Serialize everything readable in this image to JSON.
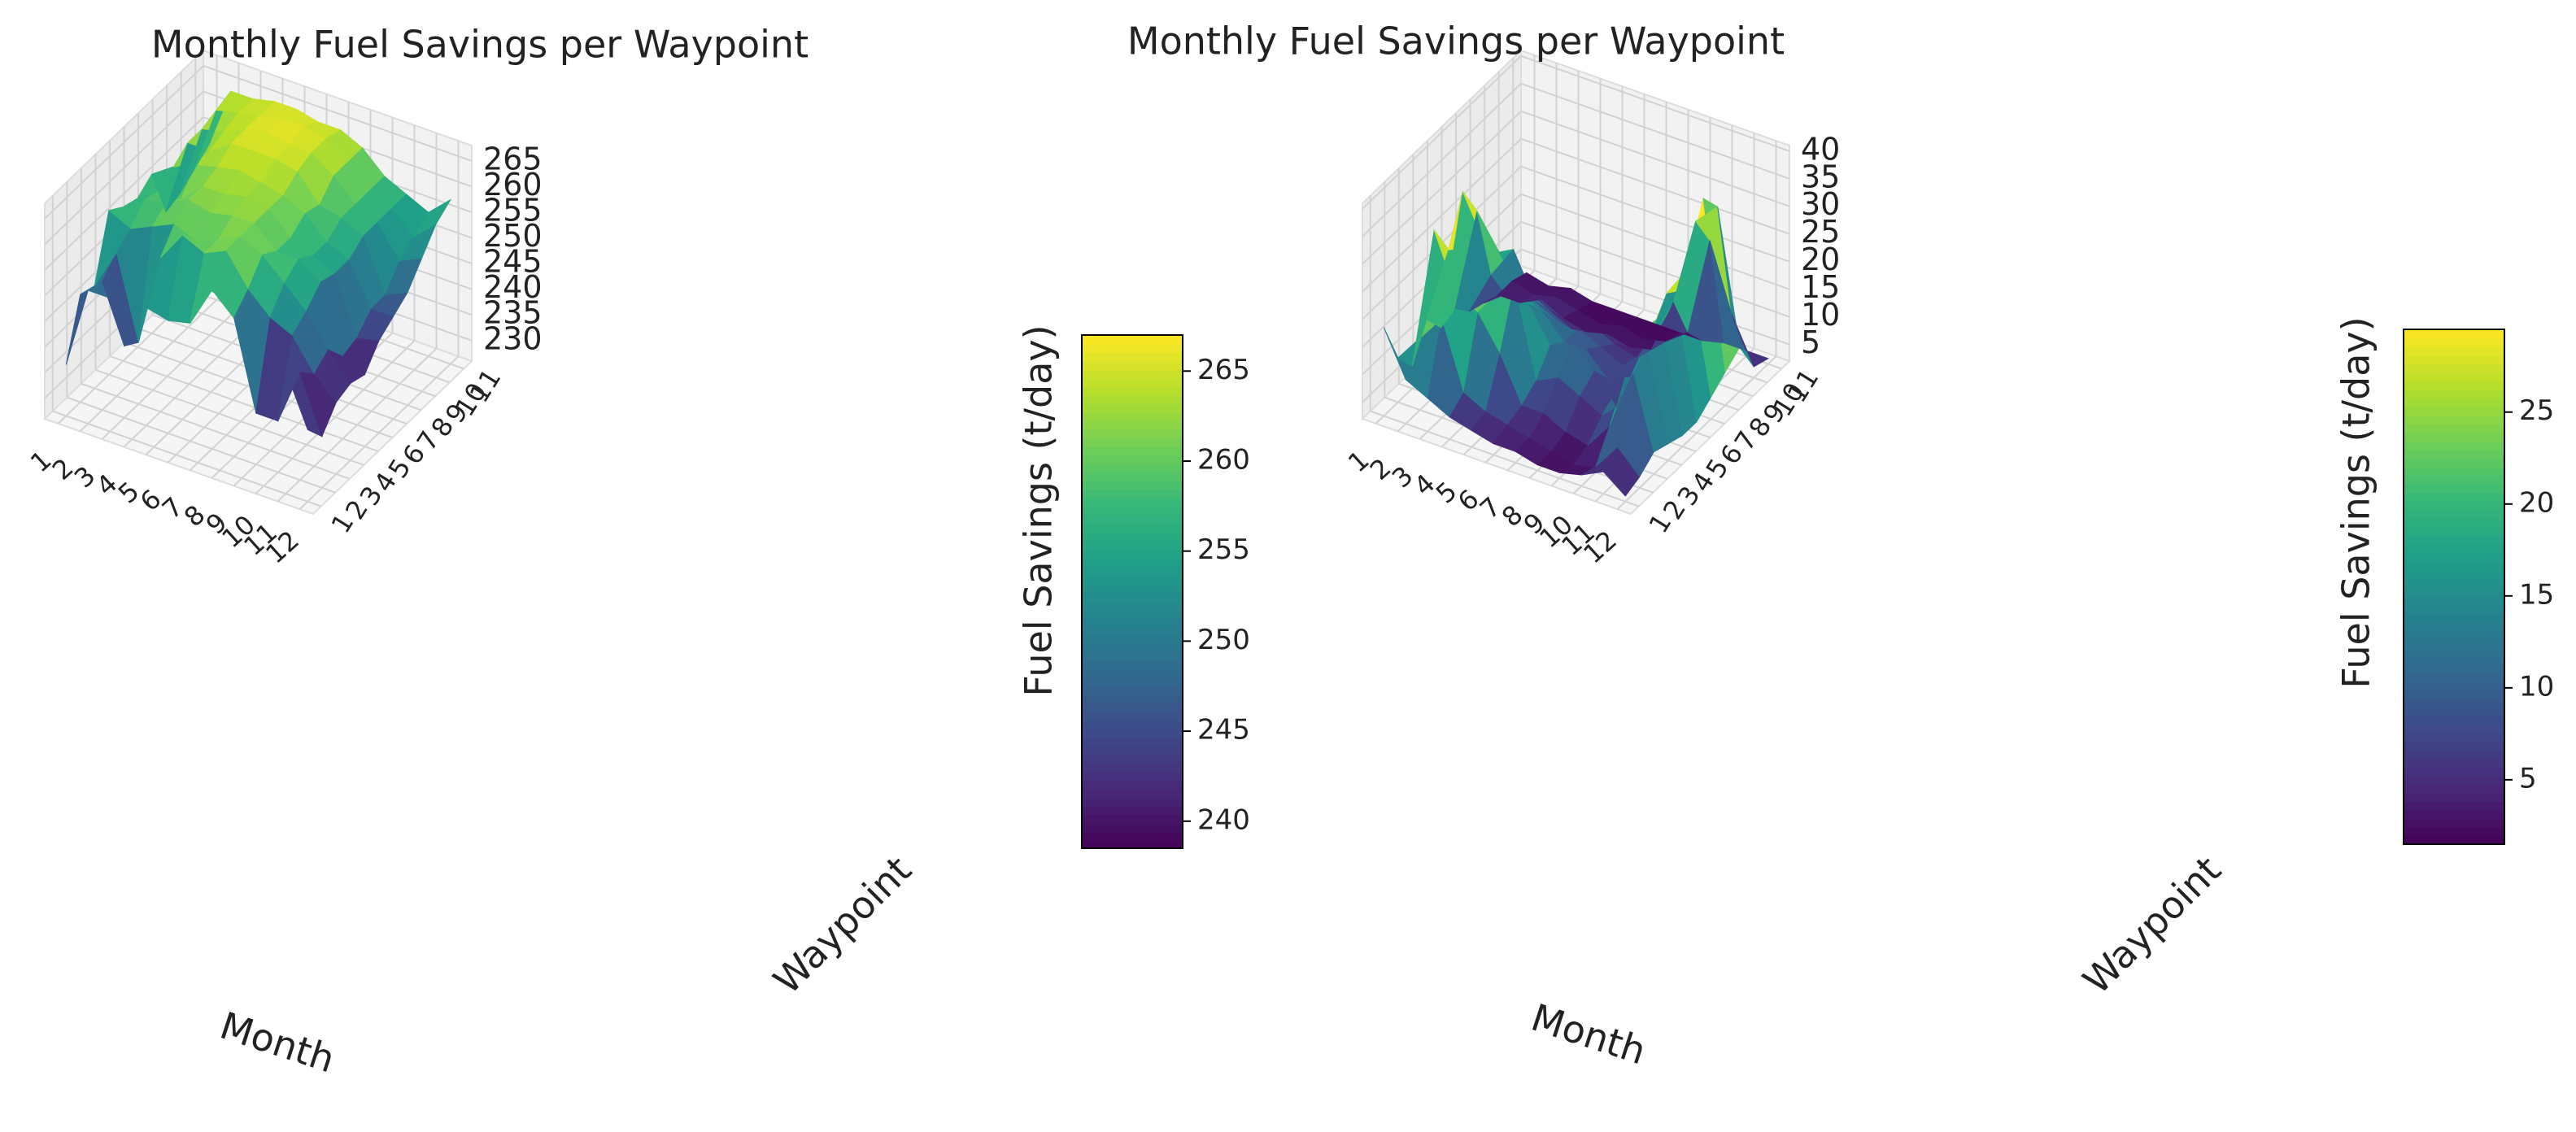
{
  "colormap": [
    "#440154",
    "#482878",
    "#3e4989",
    "#31688e",
    "#26828e",
    "#1f9e89",
    "#35b779",
    "#6ece58",
    "#b5de2b",
    "#fde725"
  ],
  "chart_data": [
    {
      "type": "surface3d",
      "title": "Monthly Fuel Savings per Waypoint",
      "xlabel": "Month",
      "ylabel": "Waypoint",
      "zlabel": "Fuel Savings (t/day)",
      "x_ticks": [
        "1",
        "2",
        "3",
        "4",
        "5",
        "6",
        "7",
        "8",
        "9",
        "10",
        "11",
        "12"
      ],
      "y_ticks": [
        "1",
        "2",
        "3",
        "4",
        "5",
        "6",
        "7",
        "8",
        "9",
        "10",
        "11"
      ],
      "z_ticks": [
        "230",
        "235",
        "240",
        "245",
        "250",
        "255",
        "260",
        "265"
      ],
      "zlim": [
        226,
        268
      ],
      "colorbar_ticks": [
        "240",
        "245",
        "250",
        "255",
        "260",
        "265"
      ],
      "colorbar_range": [
        238.5,
        267
      ],
      "months": [
        1,
        2,
        3,
        4,
        5,
        6,
        7,
        8,
        9,
        10,
        11,
        12
      ],
      "waypoints": [
        1,
        2,
        3,
        4,
        5,
        6,
        7,
        8,
        9,
        10,
        11
      ],
      "values": [
        [
          236,
          247,
          246,
          258,
          256,
          255,
          257,
          247,
          248,
          250,
          252
        ],
        [
          252,
          251,
          254,
          256,
          259,
          258,
          260,
          262,
          262,
          263,
          264
        ],
        [
          252,
          240,
          238,
          258,
          260,
          258,
          262,
          262,
          263,
          264,
          264
        ],
        [
          253,
          249,
          256,
          260,
          262,
          262,
          263,
          265,
          265,
          265,
          265
        ],
        [
          256,
          248,
          262,
          258,
          261,
          262,
          264,
          265,
          266,
          266,
          265
        ],
        [
          259,
          249,
          260,
          260,
          262,
          263,
          263,
          265,
          265,
          266,
          264
        ],
        [
          261,
          257,
          262,
          262,
          262,
          262,
          262,
          264,
          265,
          265,
          264
        ],
        [
          260,
          253,
          256,
          260,
          258,
          258,
          260,
          259,
          262,
          262,
          262
        ],
        [
          258,
          236,
          252,
          256,
          258,
          256,
          256,
          258,
          258,
          258,
          258
        ],
        [
          255,
          236,
          250,
          252,
          255,
          254,
          254,
          256,
          256,
          256,
          256
        ],
        [
          250,
          247,
          244,
          246,
          242,
          243,
          246,
          246,
          250,
          252,
          254
        ],
        [
          240,
          236,
          240,
          241,
          240,
          244,
          246,
          248,
          252,
          256,
          258
        ]
      ]
    },
    {
      "type": "surface3d",
      "title": "Monthly Fuel Savings per Waypoint",
      "xlabel": "Month",
      "ylabel": "Waypoint",
      "zlabel": "Fuel Savings (t/day)",
      "x_ticks": [
        "1",
        "2",
        "3",
        "4",
        "5",
        "6",
        "7",
        "8",
        "9",
        "10",
        "11",
        "12"
      ],
      "y_ticks": [
        "1",
        "2",
        "3",
        "4",
        "5",
        "6",
        "7",
        "8",
        "9",
        "10",
        "11"
      ],
      "z_ticks": [
        "5",
        "10",
        "15",
        "20",
        "25",
        "30",
        "35",
        "40"
      ],
      "zlim": [
        2,
        41
      ],
      "colorbar_ticks": [
        "5",
        "10",
        "15",
        "20",
        "25"
      ],
      "colorbar_range": [
        1.5,
        29.5
      ],
      "months": [
        1,
        2,
        3,
        4,
        5,
        6,
        7,
        8,
        9,
        10,
        11,
        12
      ],
      "waypoints": [
        1,
        2,
        3,
        4,
        5,
        6,
        7,
        8,
        9,
        10,
        11
      ],
      "values": [
        [
          18,
          10,
          6,
          12,
          8,
          9,
          6,
          5,
          4,
          4,
          3
        ],
        [
          10,
          15,
          32,
          26,
          34,
          28,
          14,
          8,
          4,
          3,
          2
        ],
        [
          8,
          20,
          22,
          28,
          26,
          22,
          20,
          10,
          6,
          4,
          3
        ],
        [
          6,
          8,
          20,
          20,
          18,
          16,
          12,
          8,
          4,
          3,
          2
        ],
        [
          5,
          6,
          14,
          24,
          18,
          14,
          10,
          6,
          3,
          2,
          2
        ],
        [
          4,
          5,
          6,
          8,
          12,
          10,
          10,
          8,
          4,
          3,
          2
        ],
        [
          4,
          4,
          6,
          10,
          14,
          10,
          8,
          6,
          3,
          2,
          2
        ],
        [
          3,
          3,
          4,
          8,
          10,
          6,
          6,
          5,
          4,
          3,
          2
        ],
        [
          3,
          2,
          3,
          6,
          5,
          8,
          10,
          12,
          14,
          6,
          2
        ],
        [
          4,
          3,
          8,
          14,
          20,
          18,
          22,
          20,
          30,
          24,
          3
        ],
        [
          6,
          8,
          20,
          22,
          24,
          26,
          28,
          38,
          34,
          12,
          3
        ],
        [
          3,
          4,
          6,
          5,
          4,
          4,
          6,
          8,
          10,
          4,
          3
        ]
      ]
    }
  ]
}
